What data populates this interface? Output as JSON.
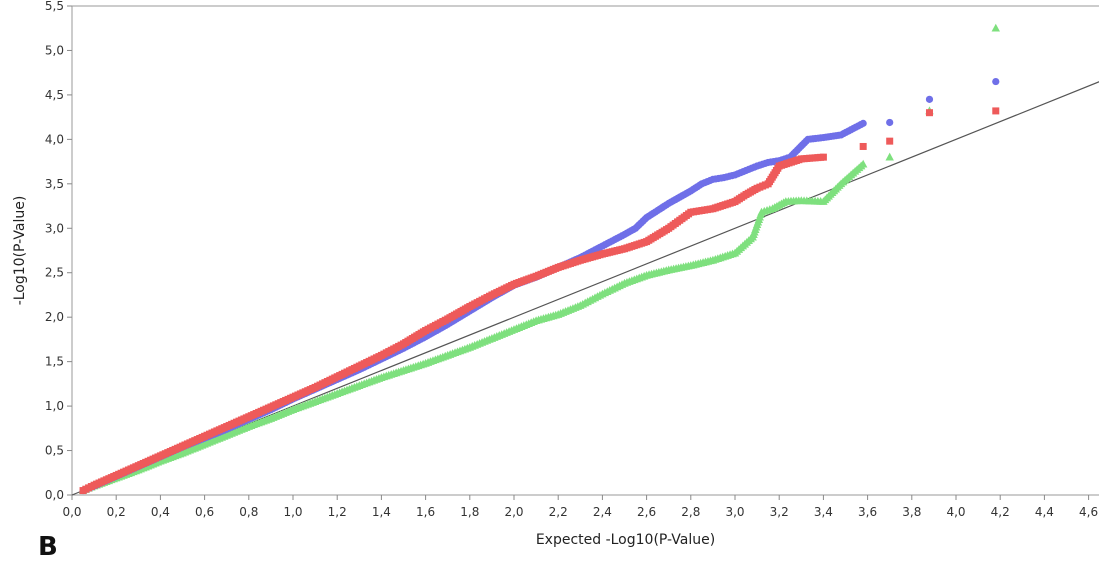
{
  "panel_label": "B",
  "chart_data": {
    "type": "scatter",
    "title": "",
    "xlabel": "Expected -Log10(P-Value)",
    "ylabel": "-Log10(P-Value)",
    "xlim": [
      0.0,
      4.7
    ],
    "ylim": [
      0.0,
      5.5
    ],
    "x_ticks": [
      "0,0",
      "0,2",
      "0,4",
      "0,6",
      "0,8",
      "1,0",
      "1,2",
      "1,4",
      "1,6",
      "1,8",
      "2,0",
      "2,2",
      "2,4",
      "2,6",
      "2,8",
      "3,0",
      "3,2",
      "3,4",
      "3,6",
      "3,8",
      "4,0",
      "4,2",
      "4,4",
      "4,6"
    ],
    "y_ticks": [
      "0,0",
      "0,5",
      "1,0",
      "1,5",
      "2,0",
      "2,5",
      "3,0",
      "3,5",
      "4,0",
      "4,5",
      "5,0",
      "5,5"
    ],
    "grid": false,
    "legend": "none",
    "reference_line": {
      "from": [
        0.0,
        0.0
      ],
      "to": [
        4.7,
        4.7
      ],
      "color": "#555555"
    },
    "series": [
      {
        "color": "#6f6fe8",
        "marker": "circle",
        "x": [
          0.05,
          0.1,
          0.2,
          0.3,
          0.4,
          0.5,
          0.6,
          0.7,
          0.8,
          0.9,
          1.0,
          1.1,
          1.2,
          1.3,
          1.4,
          1.5,
          1.6,
          1.7,
          1.8,
          1.9,
          2.0,
          2.1,
          2.2,
          2.3,
          2.4,
          2.5,
          2.55,
          2.6,
          2.65,
          2.7,
          2.75,
          2.8,
          2.85,
          2.9,
          2.95,
          3.0,
          3.05,
          3.1,
          3.15,
          3.2,
          3.25,
          3.33,
          3.4,
          3.48,
          3.58,
          3.7,
          3.88,
          4.18
        ],
        "y": [
          0.05,
          0.1,
          0.21,
          0.32,
          0.43,
          0.54,
          0.64,
          0.74,
          0.85,
          0.96,
          1.08,
          1.19,
          1.3,
          1.41,
          1.53,
          1.65,
          1.78,
          1.92,
          2.07,
          2.22,
          2.36,
          2.45,
          2.56,
          2.67,
          2.8,
          2.93,
          3.0,
          3.12,
          3.2,
          3.28,
          3.35,
          3.42,
          3.5,
          3.55,
          3.57,
          3.6,
          3.65,
          3.7,
          3.74,
          3.76,
          3.8,
          4.0,
          4.02,
          4.05,
          4.18,
          4.19,
          4.45,
          4.65
        ]
      },
      {
        "color": "#ee5a5a",
        "marker": "square",
        "x": [
          0.05,
          0.1,
          0.2,
          0.3,
          0.4,
          0.5,
          0.6,
          0.7,
          0.8,
          0.9,
          1.0,
          1.1,
          1.2,
          1.3,
          1.4,
          1.5,
          1.6,
          1.7,
          1.8,
          1.9,
          2.0,
          2.1,
          2.2,
          2.3,
          2.4,
          2.5,
          2.6,
          2.7,
          2.8,
          2.9,
          3.0,
          3.05,
          3.1,
          3.15,
          3.2,
          3.3,
          3.4,
          3.58,
          3.7,
          3.88,
          4.18
        ],
        "y": [
          0.05,
          0.11,
          0.22,
          0.33,
          0.44,
          0.55,
          0.66,
          0.77,
          0.88,
          0.99,
          1.1,
          1.21,
          1.33,
          1.45,
          1.57,
          1.7,
          1.85,
          1.98,
          2.12,
          2.25,
          2.37,
          2.46,
          2.56,
          2.64,
          2.71,
          2.77,
          2.85,
          3.0,
          3.18,
          3.22,
          3.3,
          3.38,
          3.45,
          3.5,
          3.7,
          3.78,
          3.8,
          3.92,
          3.98,
          4.3,
          4.32
        ]
      },
      {
        "color": "#7ee07e",
        "marker": "triangle",
        "x": [
          0.05,
          0.1,
          0.2,
          0.3,
          0.4,
          0.5,
          0.6,
          0.7,
          0.8,
          0.9,
          1.0,
          1.1,
          1.2,
          1.3,
          1.4,
          1.5,
          1.6,
          1.7,
          1.8,
          1.9,
          2.0,
          2.1,
          2.2,
          2.3,
          2.4,
          2.5,
          2.6,
          2.7,
          2.8,
          2.9,
          3.0,
          3.08,
          3.12,
          3.17,
          3.23,
          3.3,
          3.4,
          3.48,
          3.58,
          3.7,
          3.88,
          4.18
        ],
        "y": [
          0.05,
          0.1,
          0.19,
          0.28,
          0.38,
          0.47,
          0.57,
          0.67,
          0.77,
          0.86,
          0.96,
          1.05,
          1.14,
          1.23,
          1.32,
          1.4,
          1.48,
          1.57,
          1.66,
          1.76,
          1.86,
          1.96,
          2.03,
          2.13,
          2.26,
          2.38,
          2.47,
          2.53,
          2.58,
          2.64,
          2.72,
          2.9,
          3.18,
          3.22,
          3.3,
          3.31,
          3.3,
          3.5,
          3.72,
          3.8,
          4.32,
          5.25
        ]
      }
    ]
  }
}
